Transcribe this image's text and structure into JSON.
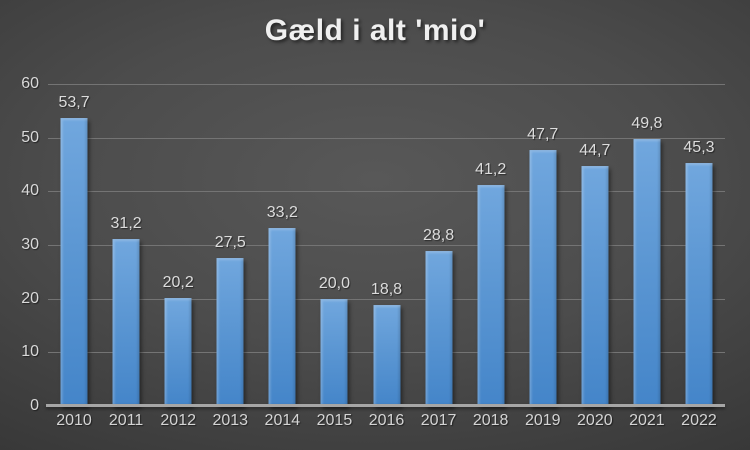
{
  "chart_data": {
    "type": "bar",
    "title": "Gæld i alt 'mio'",
    "categories": [
      "2010",
      "2011",
      "2012",
      "2013",
      "2014",
      "2015",
      "2016",
      "2017",
      "2018",
      "2019",
      "2020",
      "2021",
      "2022"
    ],
    "values": [
      53.7,
      31.2,
      20.2,
      27.5,
      33.2,
      20.0,
      18.8,
      28.8,
      41.2,
      47.7,
      44.7,
      49.8,
      45.3
    ],
    "value_labels": [
      "53,7",
      "31,2",
      "20,2",
      "27,5",
      "33,2",
      "20,0",
      "18,8",
      "28,8",
      "41,2",
      "47,7",
      "44,7",
      "49,8",
      "45,3"
    ],
    "xlabel": "",
    "ylabel": "",
    "ylim": [
      0,
      60
    ],
    "yticks": [
      0,
      10,
      20,
      30,
      40,
      50,
      60
    ],
    "grid": true,
    "legend": "none",
    "decimal_separator": ","
  },
  "colors": {
    "bar_top": "#71a7de",
    "bar_bottom": "#4485c9",
    "background_center": "#585858",
    "background_edge": "#242424",
    "gridline": "#747474",
    "axis_line": "#a6a6a6",
    "tick_label": "#d9d9d9",
    "value_label": "#dcdcdc",
    "title": "#f0f0f0"
  }
}
